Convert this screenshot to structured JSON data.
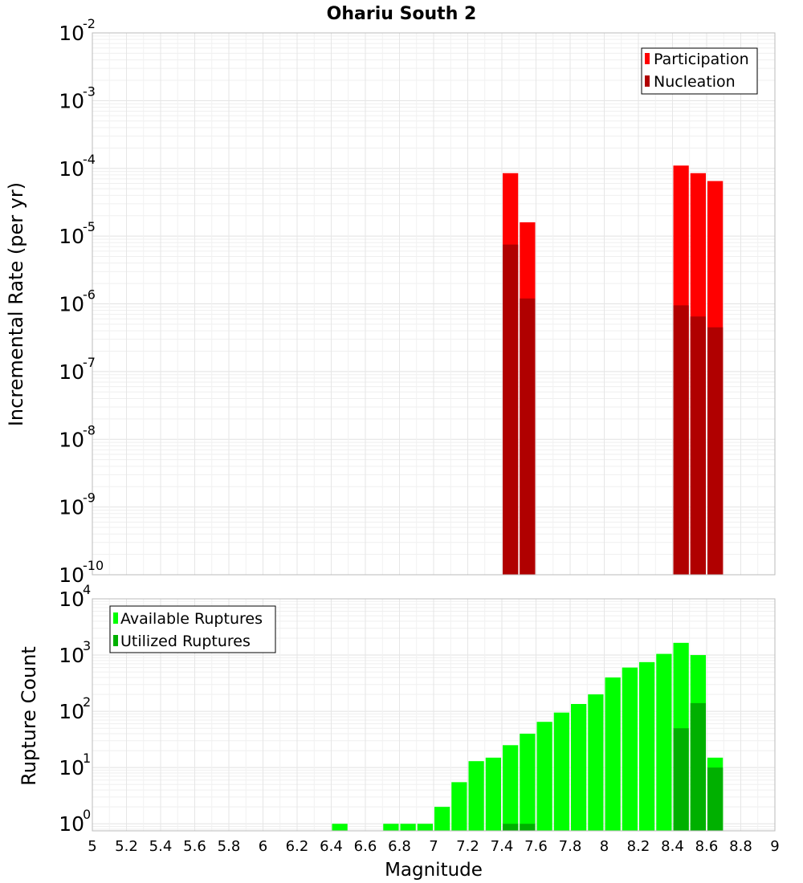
{
  "chart_data": [
    {
      "type": "bar",
      "title": "Ohariu South 2",
      "ylabel": "Incremental Rate (per yr)",
      "xlabel": "",
      "yscale": "log",
      "ylim": [
        1e-10,
        0.01
      ],
      "xlim": [
        5,
        9
      ],
      "bin_width": 0.1,
      "y_ticks": [
        {
          "mant": "10",
          "exp": "-10",
          "value": 1e-10
        },
        {
          "mant": "10",
          "exp": "-9",
          "value": 1e-09
        },
        {
          "mant": "10",
          "exp": "-8",
          "value": 1e-08
        },
        {
          "mant": "10",
          "exp": "-7",
          "value": 1e-07
        },
        {
          "mant": "10",
          "exp": "-6",
          "value": 1e-06
        },
        {
          "mant": "10",
          "exp": "-5",
          "value": 1e-05
        },
        {
          "mant": "10",
          "exp": "-4",
          "value": 0.0001
        },
        {
          "mant": "10",
          "exp": "-3",
          "value": 0.001
        },
        {
          "mant": "10",
          "exp": "-2",
          "value": 0.01
        }
      ],
      "legend_position": "top-right",
      "series": [
        {
          "name": "Participation",
          "color": "#ff0000",
          "x": [
            7.45,
            7.55,
            8.45,
            8.55,
            8.65
          ],
          "values": [
            8.5e-05,
            1.6e-05,
            0.00011,
            8.5e-05,
            6.5e-05
          ]
        },
        {
          "name": "Nucleation",
          "color": "#b00000",
          "x": [
            7.45,
            7.55,
            8.45,
            8.55,
            8.65
          ],
          "values": [
            7.5e-06,
            1.2e-06,
            9.5e-07,
            6.5e-07,
            4.5e-07
          ]
        }
      ]
    },
    {
      "type": "bar",
      "title": "",
      "ylabel": "Rupture Count",
      "xlabel": "Magnitude",
      "yscale": "log",
      "ylim": [
        0.75,
        10000
      ],
      "xlim": [
        5,
        9
      ],
      "bin_width": 0.1,
      "y_ticks": [
        {
          "mant": "10",
          "exp": "0",
          "value": 1
        },
        {
          "mant": "10",
          "exp": "1",
          "value": 10
        },
        {
          "mant": "10",
          "exp": "2",
          "value": 100
        },
        {
          "mant": "10",
          "exp": "3",
          "value": 1000
        },
        {
          "mant": "10",
          "exp": "4",
          "value": 10000
        }
      ],
      "x_ticks": [
        "5",
        "5.2",
        "5.4",
        "5.6",
        "5.8",
        "6",
        "6.2",
        "6.4",
        "6.6",
        "6.8",
        "7",
        "7.2",
        "7.4",
        "7.6",
        "7.8",
        "8",
        "8.2",
        "8.4",
        "8.6",
        "8.8",
        "9"
      ],
      "legend_position": "top-left",
      "series": [
        {
          "name": "Available Ruptures",
          "color": "#00ff00",
          "x": [
            6.45,
            6.75,
            6.85,
            6.95,
            7.05,
            7.15,
            7.25,
            7.35,
            7.45,
            7.55,
            7.65,
            7.75,
            7.85,
            7.95,
            8.05,
            8.15,
            8.25,
            8.35,
            8.45,
            8.55,
            8.65
          ],
          "values": [
            1,
            1,
            1,
            1,
            2,
            5.5,
            13,
            15,
            25,
            40,
            65,
            95,
            135,
            200,
            400,
            600,
            750,
            1050,
            1650,
            1000,
            15
          ]
        },
        {
          "name": "Utilized Ruptures",
          "color": "#00b000",
          "x": [
            7.45,
            7.55,
            8.45,
            8.55,
            8.65
          ],
          "values": [
            1,
            1,
            50,
            140,
            10
          ]
        }
      ]
    }
  ]
}
